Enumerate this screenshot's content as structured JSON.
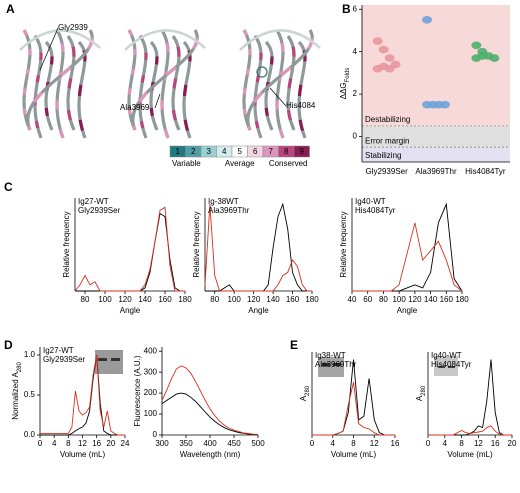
{
  "panel_labels": [
    "A",
    "B",
    "C",
    "D",
    "E"
  ],
  "panel_a": {
    "residues": [
      "Gly2939",
      "Ala3969",
      "His4084"
    ],
    "scale": {
      "values": [
        1,
        2,
        3,
        4,
        5,
        6,
        7,
        8,
        9
      ],
      "colors": [
        "#1e7a7f",
        "#4fa0a6",
        "#9ccfd3",
        "#d2ebed",
        "#ffffff",
        "#f2d6e4",
        "#dc96bb",
        "#b8457d",
        "#8a1c55"
      ],
      "labels": [
        "Variable",
        "Average",
        "Conserved"
      ]
    }
  },
  "chart_data": [
    {
      "type": "dot",
      "ylabel": "ΔΔG",
      "ylabel_subscript": "Folds",
      "categories": [
        "Gly2939Ser",
        "Ala3969Thr",
        "His4084Tyr"
      ],
      "colors": [
        "#e8979c",
        "#6fa3d8",
        "#4caf6a"
      ],
      "values": [
        [
          4.5,
          4.1,
          3.7,
          3.4,
          3.2,
          3.3,
          3.2
        ],
        [
          5.5,
          1.5,
          1.5,
          1.5,
          1.5
        ],
        [
          4.3,
          4.0,
          3.8,
          3.7,
          3.7,
          3.8
        ]
      ],
      "regions": [
        {
          "label": "Destabilizing",
          "range": [
            0.5,
            6.2
          ],
          "color": "#f8d9d9"
        },
        {
          "label": "Error margin",
          "range": [
            -0.5,
            0.5
          ],
          "color": "#e0e0e0"
        },
        {
          "label": "Stabilizing",
          "range": [
            -1.2,
            -0.5
          ],
          "color": "#e3e1f1"
        }
      ],
      "ylim": [
        -1.2,
        6.2
      ],
      "yticks": [
        0,
        2,
        4,
        6
      ]
    },
    {
      "type": "line",
      "xlabel": "Angle",
      "ylabel": "Relative frequency",
      "xlim": [
        70,
        180
      ],
      "ylim": [
        0,
        0.3
      ],
      "xticks": [
        80,
        100,
        120,
        140,
        160,
        180
      ],
      "x": [
        70,
        75,
        80,
        85,
        90,
        95,
        100,
        105,
        110,
        115,
        120,
        125,
        130,
        135,
        140,
        145,
        150,
        155,
        160,
        165,
        170,
        175,
        180
      ],
      "series": [
        {
          "name": "Ig27-WT",
          "color": "#000000",
          "values": [
            0,
            0,
            0,
            0,
            0,
            0,
            0,
            0,
            0,
            0,
            0,
            0,
            0,
            0,
            0.01,
            0.06,
            0.16,
            0.25,
            0.24,
            0.1,
            0.01,
            0,
            0
          ]
        },
        {
          "name": "Gly2939Ser",
          "color": "#d7301f",
          "values": [
            0,
            0.02,
            0.05,
            0.02,
            0.03,
            0,
            0,
            0,
            0,
            0,
            0,
            0,
            0,
            0,
            0.02,
            0.07,
            0.16,
            0.26,
            0.27,
            0.08,
            0,
            0,
            0
          ]
        }
      ]
    },
    {
      "type": "line",
      "xlabel": "Angle",
      "ylabel": "Relative frequency",
      "xlim": [
        70,
        180
      ],
      "ylim": [
        0,
        0.3
      ],
      "xticks": [
        80,
        100,
        120,
        140,
        160,
        180
      ],
      "x": [
        70,
        75,
        80,
        85,
        90,
        95,
        100,
        105,
        110,
        115,
        120,
        125,
        130,
        135,
        140,
        145,
        150,
        155,
        160,
        165,
        170,
        175,
        180
      ],
      "series": [
        {
          "name": "Ig-38WT",
          "color": "#000000",
          "values": [
            0,
            0,
            0,
            0,
            0.01,
            0.02,
            0,
            0,
            0,
            0,
            0,
            0,
            0,
            0.02,
            0.14,
            0.24,
            0.28,
            0.2,
            0.06,
            0.02,
            0,
            0,
            0
          ]
        },
        {
          "name": "Ala3969Thr",
          "color": "#d7301f",
          "values": [
            0.02,
            0.28,
            0.05,
            0,
            0,
            0,
            0,
            0,
            0,
            0,
            0,
            0,
            0,
            0,
            0,
            0.02,
            0.05,
            0.06,
            0.1,
            0.08,
            0.02,
            0,
            0
          ]
        }
      ]
    },
    {
      "type": "line",
      "xlabel": "Angle",
      "ylabel": "Relative frequency",
      "xlim": [
        40,
        180
      ],
      "ylim": [
        0,
        0.3
      ],
      "xticks": [
        40,
        60,
        80,
        100,
        120,
        140,
        160,
        180
      ],
      "x": [
        40,
        50,
        60,
        70,
        80,
        90,
        100,
        110,
        120,
        130,
        140,
        150,
        160,
        170,
        180
      ],
      "series": [
        {
          "name": "Ig40-WT",
          "color": "#000000",
          "values": [
            0,
            0,
            0,
            0,
            0,
            0,
            0,
            0.01,
            0.02,
            0.01,
            0.06,
            0.22,
            0.28,
            0.04,
            0
          ]
        },
        {
          "name": "His4084Tyr",
          "color": "#d7301f",
          "values": [
            0,
            0,
            0,
            0,
            0,
            0,
            0.02,
            0.12,
            0.22,
            0.1,
            0.13,
            0.16,
            0.1,
            0.02,
            0
          ]
        }
      ]
    },
    {
      "type": "line",
      "xlabel": "Volume (mL)",
      "ylabel": "Normalized A",
      "ylabel_subscript": "280",
      "xlim": [
        0,
        24
      ],
      "ylim": [
        0,
        1.1
      ],
      "xticks": [
        0,
        4,
        8,
        12,
        16,
        20,
        24
      ],
      "yticks": [
        {
          "value": 0,
          "label": "0.0"
        },
        {
          "value": 0.5,
          "label": "0.5"
        },
        {
          "value": 1,
          "label": "1.0"
        }
      ],
      "x": [
        0,
        1,
        2,
        3,
        4,
        5,
        6,
        7,
        8,
        9,
        10,
        11,
        12,
        13,
        14,
        15,
        16,
        17,
        18,
        19,
        20,
        21,
        22,
        23,
        24
      ],
      "series": [
        {
          "name": "Ig27-WT",
          "color": "#000000",
          "values": [
            0,
            0,
            0,
            0,
            0,
            0,
            0,
            0,
            0,
            0.02,
            0.05,
            0.08,
            0.1,
            0.15,
            0.3,
            0.7,
            1.0,
            0.4,
            0.05,
            0.02,
            0,
            0,
            0,
            0,
            0
          ]
        },
        {
          "name": "Gly2939Ser",
          "color": "#d7301f",
          "values": [
            0.02,
            0.02,
            0.02,
            0.02,
            0.02,
            0.02,
            0.02,
            0.02,
            0.02,
            0.1,
            0.55,
            0.3,
            0.25,
            0.28,
            0.35,
            0.75,
            1.0,
            0.3,
            0.1,
            0.3,
            0.05,
            0.02,
            0,
            0,
            0
          ]
        }
      ]
    },
    {
      "type": "line",
      "xlabel": "Wavelength (nm)",
      "ylabel": "Fluorescence (A.U.)",
      "xlim": [
        300,
        500
      ],
      "ylim": [
        0,
        420
      ],
      "xticks": [
        300,
        350,
        400,
        450,
        500
      ],
      "yticks": [
        0,
        100,
        200,
        300,
        400
      ],
      "x": [
        300,
        310,
        320,
        330,
        340,
        350,
        360,
        370,
        380,
        390,
        400,
        410,
        420,
        430,
        440,
        450,
        460,
        470,
        480,
        490,
        500
      ],
      "series": [
        {
          "color": "#000000",
          "values": [
            150,
            165,
            180,
            195,
            200,
            195,
            180,
            160,
            135,
            110,
            85,
            65,
            48,
            35,
            25,
            18,
            12,
            8,
            5,
            3,
            2
          ]
        },
        {
          "color": "#d7301f",
          "values": [
            165,
            215,
            270,
            315,
            330,
            320,
            295,
            255,
            210,
            165,
            125,
            92,
            66,
            47,
            33,
            23,
            16,
            10,
            7,
            4,
            3
          ]
        }
      ]
    },
    {
      "type": "line",
      "xlabel": "Volume (mL)",
      "ylabel": "A",
      "ylabel_subscript": "280",
      "xlim": [
        0,
        16
      ],
      "ylim": [
        0,
        1.1
      ],
      "xticks": [
        0,
        4,
        8,
        12,
        16
      ],
      "x": [
        0,
        1,
        2,
        3,
        4,
        5,
        6,
        7,
        8,
        9,
        10,
        11,
        12,
        13,
        14,
        15,
        16
      ],
      "series": [
        {
          "name": "Ig38-WT",
          "color": "#000000",
          "values": [
            0,
            0,
            0,
            0,
            0,
            0.02,
            0.05,
            0.3,
            1.0,
            0.2,
            0.25,
            0.75,
            0.2,
            0.03,
            0,
            0,
            0
          ]
        },
        {
          "name": "Ala3969Thr",
          "color": "#d7301f",
          "values": [
            0,
            0,
            0,
            0,
            0,
            0.02,
            0.05,
            0.4,
            0.7,
            0.15,
            0.1,
            0.08,
            0.03,
            0,
            0,
            0,
            0
          ]
        }
      ]
    },
    {
      "type": "line",
      "xlabel": "Volume (mL)",
      "ylabel": "A",
      "ylabel_subscript": "280",
      "xlim": [
        0,
        20
      ],
      "ylim": [
        0,
        1.1
      ],
      "xticks": [
        0,
        4,
        8,
        12,
        16,
        20
      ],
      "x": [
        0,
        1,
        2,
        3,
        4,
        5,
        6,
        7,
        8,
        9,
        10,
        11,
        12,
        13,
        14,
        15,
        16,
        17,
        18,
        19,
        20
      ],
      "series": [
        {
          "name": "Ig40-WT",
          "color": "#000000",
          "values": [
            0,
            0,
            0,
            0,
            0,
            0,
            0,
            0,
            0,
            0,
            0.02,
            0.05,
            0.12,
            0.1,
            0.45,
            1.0,
            0.3,
            0.03,
            0,
            0,
            0
          ]
        },
        {
          "name": "His4084Tyr",
          "color": "#d7301f",
          "values": [
            0,
            0,
            0,
            0,
            0,
            0,
            0,
            0.03,
            0.06,
            0.03,
            0.02,
            0.03,
            0.04,
            0.05,
            0.1,
            0.12,
            0.05,
            0.01,
            0,
            0,
            0
          ]
        }
      ]
    }
  ]
}
